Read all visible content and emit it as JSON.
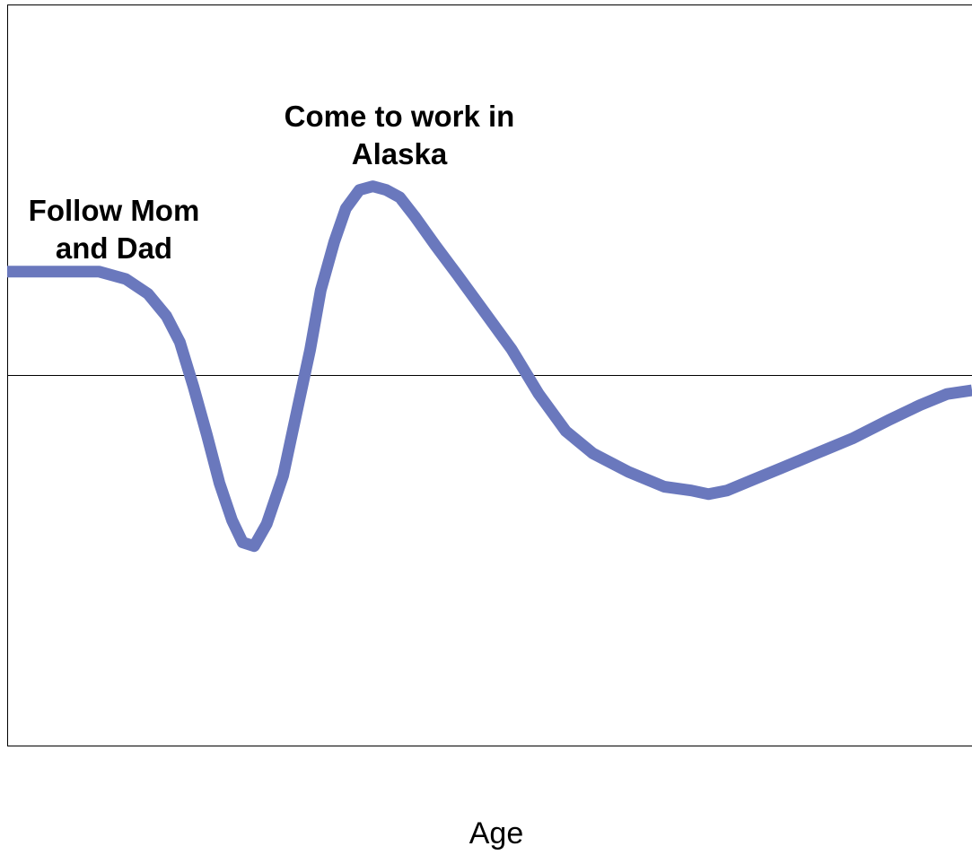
{
  "chart_data": {
    "type": "line",
    "x_label": "Age",
    "annotations": [
      "Follow Mom and Dad",
      "Come to work in Alaska"
    ],
    "xlim": [
      0,
      100
    ],
    "ylim": [
      -1,
      1
    ],
    "series": [
      {
        "color": "#6a78bd",
        "x": [
          0,
          4.8,
          9.5,
          12.3,
          14.6,
          16.5,
          17.9,
          19.3,
          20.7,
          22.0,
          23.3,
          24.4,
          25.6,
          26.9,
          28.6,
          30.0,
          31.4,
          32.5,
          33.9,
          35.1,
          36.5,
          37.9,
          39.3,
          40.7,
          42.2,
          44.4,
          46.7,
          49.5,
          52.3,
          55.1,
          57.9,
          60.7,
          64.4,
          68.1,
          70.9,
          72.7,
          74.6,
          77.4,
          80.2,
          83.9,
          87.6,
          91.4,
          94.6,
          97.4,
          100
        ],
        "values": [
          0.28,
          0.28,
          0.28,
          0.26,
          0.22,
          0.16,
          0.09,
          -0.03,
          -0.16,
          -0.29,
          -0.39,
          -0.45,
          -0.46,
          -0.4,
          -0.27,
          -0.1,
          0.07,
          0.23,
          0.36,
          0.45,
          0.5,
          0.51,
          0.5,
          0.48,
          0.43,
          0.35,
          0.27,
          0.17,
          0.07,
          -0.05,
          -0.15,
          -0.21,
          -0.26,
          -0.3,
          -0.31,
          -0.32,
          -0.31,
          -0.28,
          -0.25,
          -0.21,
          -0.17,
          -0.12,
          -0.08,
          -0.05,
          -0.04
        ]
      }
    ]
  }
}
